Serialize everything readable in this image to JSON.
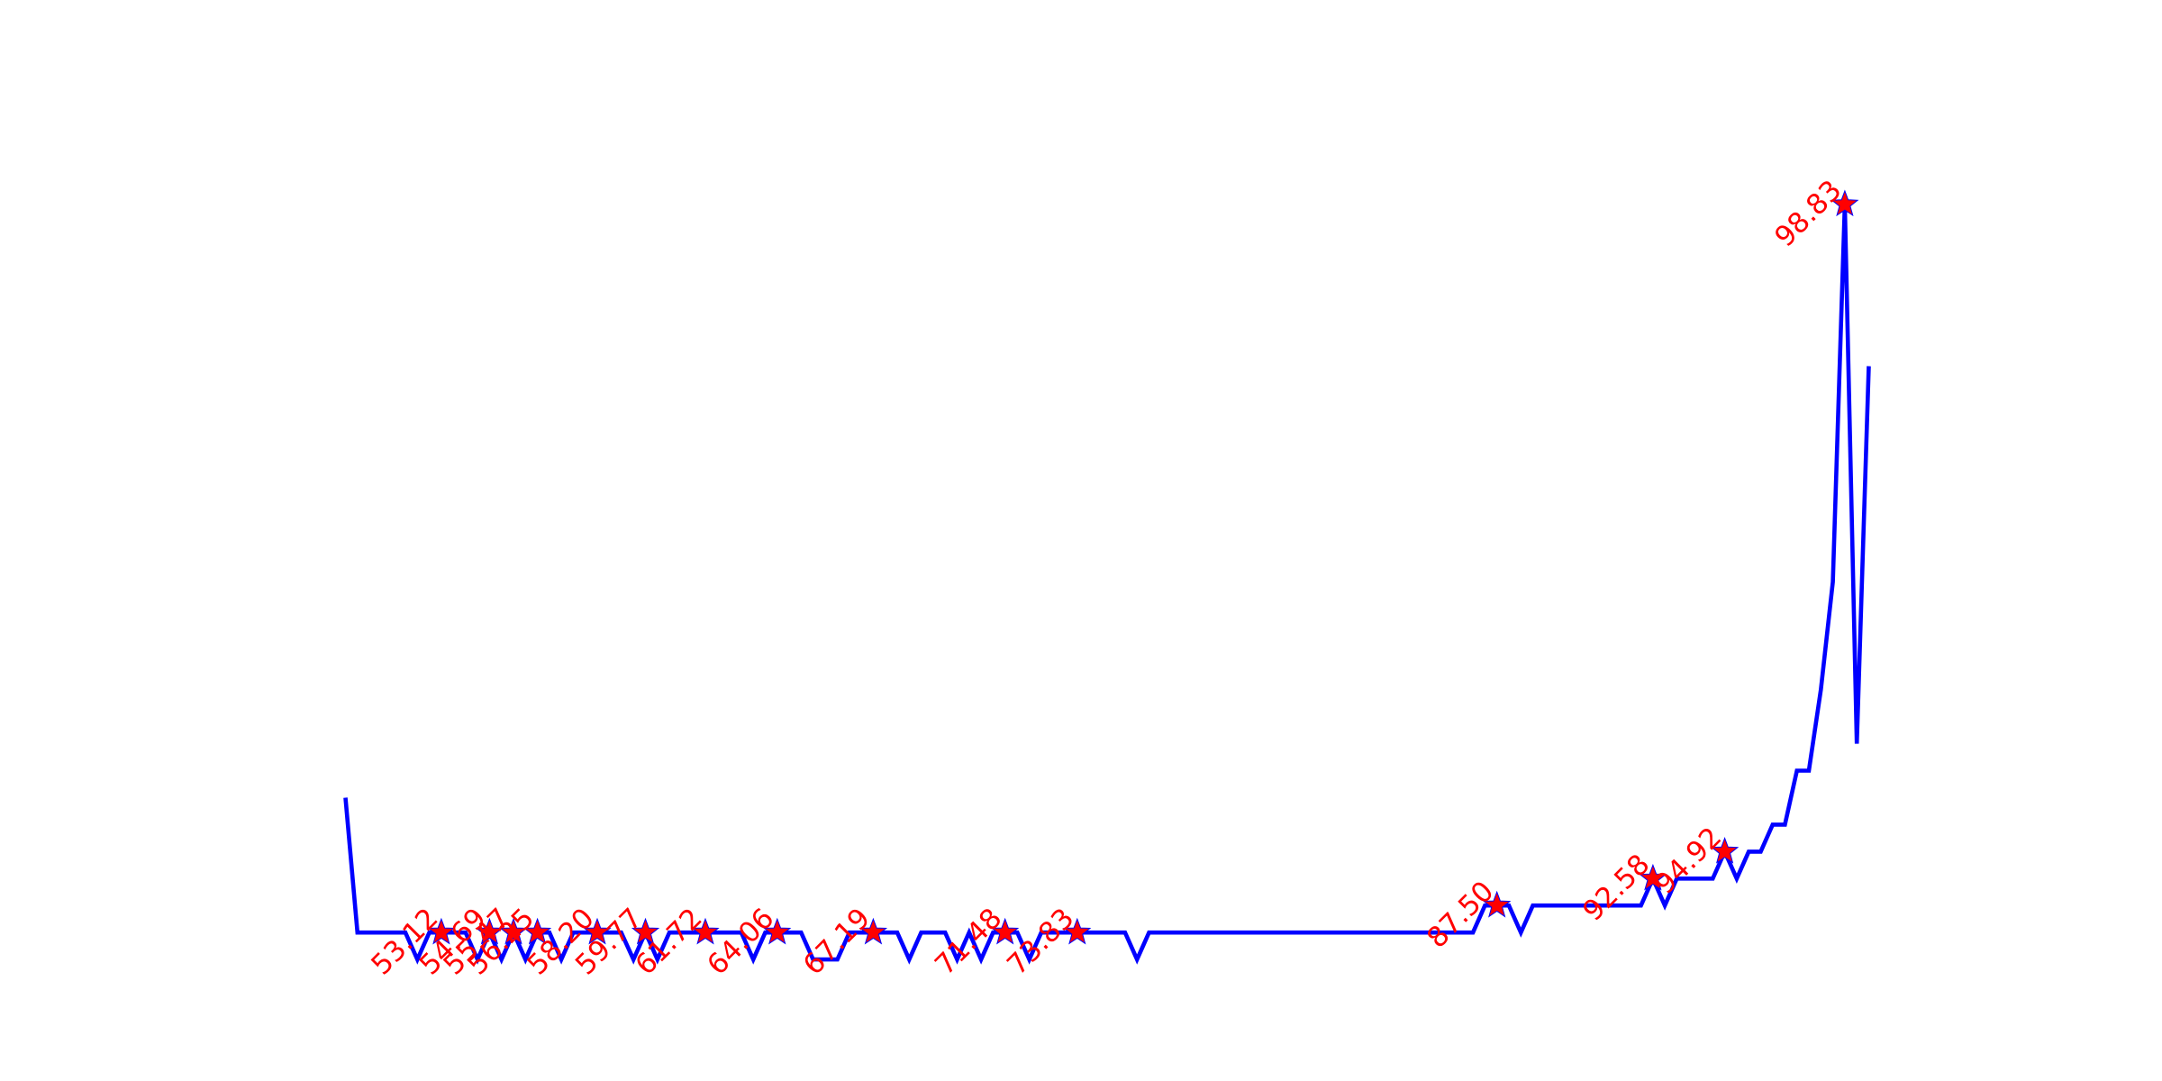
{
  "chart_data": {
    "type": "line",
    "x": [
      50.0,
      50.39,
      50.78,
      51.17,
      51.56,
      51.95,
      52.34,
      52.73,
      53.12,
      53.52,
      53.91,
      54.3,
      54.69,
      55.08,
      55.47,
      55.86,
      56.25,
      56.64,
      57.03,
      57.42,
      57.81,
      58.2,
      58.59,
      58.98,
      59.38,
      59.77,
      60.16,
      60.55,
      60.94,
      61.33,
      61.72,
      62.11,
      62.5,
      62.89,
      63.28,
      63.67,
      64.06,
      64.45,
      64.84,
      65.23,
      65.62,
      66.02,
      66.41,
      66.8,
      67.19,
      67.58,
      67.97,
      68.36,
      68.75,
      69.14,
      69.53,
      69.92,
      70.31,
      70.7,
      71.09,
      71.48,
      71.88,
      72.27,
      72.66,
      73.05,
      73.44,
      73.83,
      74.22,
      74.61,
      75.0,
      75.39,
      75.78,
      76.17,
      76.56,
      76.95,
      77.34,
      77.73,
      78.12,
      78.52,
      78.91,
      79.3,
      79.69,
      80.08,
      80.47,
      80.86,
      81.25,
      81.64,
      82.03,
      82.42,
      82.81,
      83.2,
      83.59,
      83.98,
      84.38,
      84.77,
      85.16,
      85.55,
      85.94,
      86.33,
      86.72,
      87.11,
      87.5,
      87.89,
      88.28,
      88.67,
      89.06,
      89.45,
      89.84,
      90.23,
      90.62,
      91.02,
      91.41,
      91.8,
      92.19,
      92.58,
      92.97,
      93.36,
      93.75,
      94.14,
      94.53,
      94.92,
      95.31,
      95.7,
      96.09,
      96.48,
      96.88,
      97.27,
      97.66,
      98.05,
      98.44,
      98.83,
      99.22,
      99.61
    ],
    "series": [
      {
        "color": "#0000ff",
        "marker_color": "#ff0000",
        "values": [
          6,
          1,
          1,
          1,
          1,
          1,
          0,
          1,
          1,
          1,
          1,
          0,
          1,
          0,
          1,
          0,
          1,
          1,
          0,
          1,
          1,
          1,
          1,
          1,
          0,
          1,
          0,
          1,
          1,
          1,
          1,
          1,
          1,
          1,
          0,
          1,
          1,
          1,
          1,
          0,
          0,
          0,
          1,
          1,
          1,
          1,
          1,
          0,
          1,
          1,
          1,
          0,
          1,
          0,
          1,
          1,
          1,
          0,
          1,
          1,
          1,
          1,
          1,
          1,
          1,
          1,
          0,
          1,
          1,
          1,
          1,
          1,
          1,
          1,
          1,
          1,
          1,
          1,
          1,
          1,
          1,
          1,
          1,
          1,
          1,
          1,
          1,
          1,
          1,
          1,
          1,
          1,
          1,
          1,
          1,
          2,
          2,
          2,
          1,
          2,
          2,
          2,
          2,
          2,
          2,
          2,
          2,
          2,
          2,
          3,
          2,
          3,
          3,
          3,
          3,
          4,
          3,
          4,
          4,
          5,
          5,
          7,
          7,
          10,
          14,
          28,
          8,
          22
        ],
        "x_labels": [
          null,
          null,
          null,
          null,
          null,
          null,
          null,
          null,
          "53.12",
          null,
          null,
          null,
          "54.69",
          null,
          "55.47",
          null,
          "56.25",
          null,
          null,
          null,
          null,
          "58.20",
          null,
          null,
          null,
          "59.77",
          null,
          null,
          null,
          null,
          "61.72",
          null,
          null,
          null,
          null,
          null,
          "64.06",
          null,
          null,
          null,
          null,
          null,
          null,
          null,
          "67.19",
          null,
          null,
          null,
          null,
          null,
          null,
          null,
          null,
          null,
          null,
          "71.48",
          null,
          null,
          null,
          null,
          null,
          "73.83",
          null,
          null,
          null,
          null,
          null,
          null,
          null,
          null,
          null,
          null,
          null,
          null,
          null,
          null,
          null,
          null,
          null,
          null,
          null,
          null,
          null,
          null,
          null,
          null,
          null,
          null,
          null,
          null,
          null,
          null,
          null,
          null,
          null,
          null,
          "87.50",
          null,
          null,
          null,
          null,
          null,
          null,
          null,
          null,
          null,
          null,
          null,
          null,
          "92.58",
          null,
          null,
          null,
          null,
          null,
          "94.92",
          null,
          null,
          null,
          null,
          null,
          null,
          null,
          null,
          null,
          "98.83",
          null,
          null
        ]
      }
    ],
    "xlim": [
      47.52,
      102.09
    ],
    "ylim": [
      -1.4,
      29.4
    ],
    "axes_visible": false
  }
}
